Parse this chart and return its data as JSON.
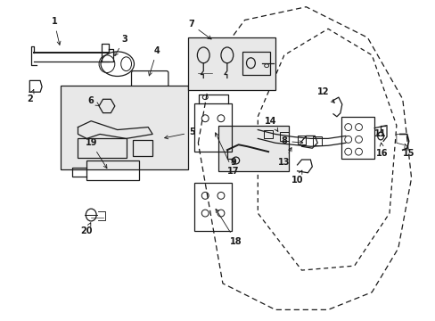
{
  "bg_color": "#ffffff",
  "line_color": "#1a1a1a",
  "box_fill": "#e8e8e8",
  "lw": 0.9
}
